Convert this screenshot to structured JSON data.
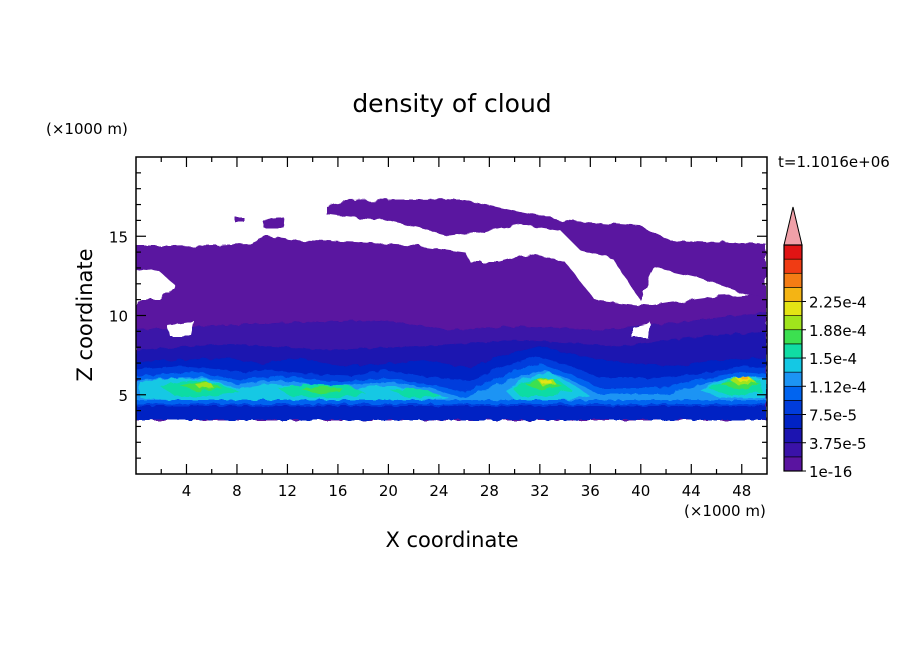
{
  "chart_data": {
    "type": "heatmap",
    "title": "density of cloud",
    "xlabel": "X coordinate",
    "ylabel": "Z coordinate",
    "x_unit": "(×1000 m)",
    "y_unit": "(×1000 m)",
    "time_label": "t=1.1016e+06",
    "xlim": [
      0,
      50
    ],
    "ylim": [
      0,
      20
    ],
    "xticks": [
      4,
      8,
      12,
      16,
      20,
      24,
      28,
      32,
      36,
      40,
      44,
      48
    ],
    "yticks": [
      5,
      10,
      15
    ],
    "grid": false,
    "colorbar": {
      "colors": [
        "#5a14a0",
        "#3a12a8",
        "#1c14b0",
        "#0022c4",
        "#003cdc",
        "#0064f0",
        "#1c94f4",
        "#14c8e4",
        "#10dca4",
        "#3ce050",
        "#a0e41c",
        "#e4e414",
        "#f4b414",
        "#f47c14",
        "#f03c14",
        "#e01414",
        "#f0a0a8"
      ],
      "tick_labels": [
        "1e-16",
        "3.75e-5",
        "7.5e-5",
        "1.12e-4",
        "1.5e-4",
        "1.88e-4",
        "2.25e-4"
      ],
      "extend_top": true
    },
    "features": [
      {
        "name": "upper cloud sheet",
        "x_range": [
          0,
          50
        ],
        "z_range": [
          11,
          17.6
        ],
        "level": "1e-16 to 3.75e-5"
      },
      {
        "name": "mid cloud deck",
        "x_range": [
          0,
          50
        ],
        "z_range": [
          4,
          11
        ],
        "level": "up to 7.5e-5"
      },
      {
        "name": "dense lower layer",
        "x_range": [
          0,
          50
        ],
        "z_range": [
          3.4,
          7
        ],
        "level": "up to 2.25e-4",
        "peaks_x": [
          5,
          15,
          22,
          33,
          47
        ]
      }
    ]
  }
}
